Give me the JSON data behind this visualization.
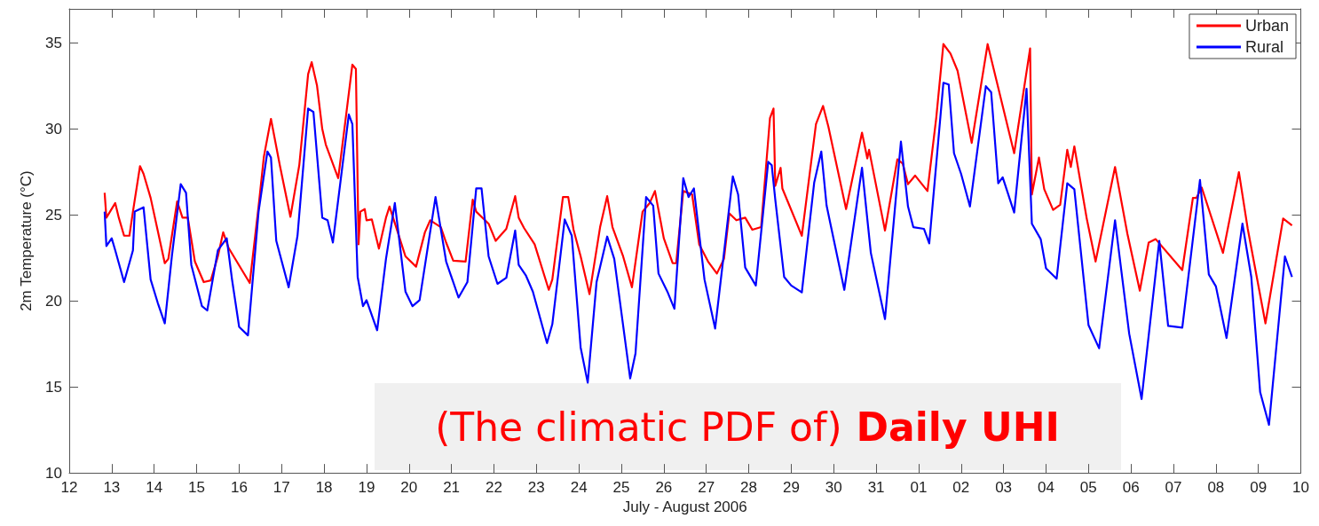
{
  "chart_data": {
    "type": "line",
    "xlabel": "July - August 2006",
    "ylabel": "2m Temperature (°C)",
    "xlim": [
      "2006-07-12",
      "2006-08-10"
    ],
    "ylim": [
      10,
      37
    ],
    "xticks": [
      {
        "value": "2006-07-12",
        "label": "12"
      },
      {
        "value": "2006-07-13",
        "label": "13"
      },
      {
        "value": "2006-07-14",
        "label": "14"
      },
      {
        "value": "2006-07-15",
        "label": "15"
      },
      {
        "value": "2006-07-16",
        "label": "16"
      },
      {
        "value": "2006-07-17",
        "label": "17"
      },
      {
        "value": "2006-07-18",
        "label": "18"
      },
      {
        "value": "2006-07-19",
        "label": "19"
      },
      {
        "value": "2006-07-20",
        "label": "20"
      },
      {
        "value": "2006-07-21",
        "label": "21"
      },
      {
        "value": "2006-07-22",
        "label": "22"
      },
      {
        "value": "2006-07-23",
        "label": "23"
      },
      {
        "value": "2006-07-24",
        "label": "24"
      },
      {
        "value": "2006-07-25",
        "label": "25"
      },
      {
        "value": "2006-07-26",
        "label": "26"
      },
      {
        "value": "2006-07-27",
        "label": "27"
      },
      {
        "value": "2006-07-28",
        "label": "28"
      },
      {
        "value": "2006-07-29",
        "label": "29"
      },
      {
        "value": "2006-07-30",
        "label": "30"
      },
      {
        "value": "2006-07-31",
        "label": "31"
      },
      {
        "value": "2006-08-01",
        "label": "01"
      },
      {
        "value": "2006-08-02",
        "label": "02"
      },
      {
        "value": "2006-08-03",
        "label": "03"
      },
      {
        "value": "2006-08-04",
        "label": "04"
      },
      {
        "value": "2006-08-05",
        "label": "05"
      },
      {
        "value": "2006-08-06",
        "label": "06"
      },
      {
        "value": "2006-08-07",
        "label": "07"
      },
      {
        "value": "2006-08-08",
        "label": "08"
      },
      {
        "value": "2006-08-09",
        "label": "09"
      },
      {
        "value": "2006-08-10",
        "label": "10"
      }
    ],
    "yticks": [
      10,
      15,
      20,
      25,
      30,
      35
    ],
    "grid": false,
    "legend": "top right",
    "line_style": "solid",
    "marker": "none",
    "annotations": [
      "(The climatic PDF of)",
      "Daily UHI"
    ],
    "series": [
      {
        "name": "Urban",
        "color": "#ff0000",
        "x": [
          "2006-07-12T20:00",
          "2006-07-12T21:00",
          "2006-07-13T02:00",
          "2006-07-13T04:00",
          "2006-07-13T07:00",
          "2006-07-13T10:00",
          "2006-07-13T12:00",
          "2006-07-13T16:00",
          "2006-07-13T18:00",
          "2006-07-13T22:00",
          "2006-07-14T06:00",
          "2006-07-14T08:00",
          "2006-07-14T13:00",
          "2006-07-14T16:00",
          "2006-07-14T19:00",
          "2006-07-14T23:00",
          "2006-07-15T04:00",
          "2006-07-15T08:00",
          "2006-07-15T12:00",
          "2006-07-15T15:00",
          "2006-07-15T18:00",
          "2006-07-16T01:00",
          "2006-07-16T06:00",
          "2006-07-16T11:00",
          "2006-07-16T14:00",
          "2006-07-16T18:00",
          "2006-07-16T23:00",
          "2006-07-17T05:00",
          "2006-07-17T10:00",
          "2006-07-17T15:00",
          "2006-07-17T17:00",
          "2006-07-17T20:00",
          "2006-07-17T23:00",
          "2006-07-18T01:00",
          "2006-07-18T08:00",
          "2006-07-18T11:00",
          "2006-07-18T16:00",
          "2006-07-18T18:00",
          "2006-07-18T19:30",
          "2006-07-18T20:30",
          "2006-07-18T23:00",
          "2006-07-19T00:00",
          "2006-07-19T03:00",
          "2006-07-19T07:00",
          "2006-07-19T11:00",
          "2006-07-19T13:00",
          "2006-07-19T22:00",
          "2006-07-20T04:00",
          "2006-07-20T09:00",
          "2006-07-20T12:00",
          "2006-07-20T18:00",
          "2006-07-20T21:00",
          "2006-07-21T01:00",
          "2006-07-21T08:00",
          "2006-07-21T12:00",
          "2006-07-21T14:00",
          "2006-07-21T21:00",
          "2006-07-22T01:00",
          "2006-07-22T07:00",
          "2006-07-22T12:00",
          "2006-07-22T14:00",
          "2006-07-22T17:00",
          "2006-07-22T23:00",
          "2006-07-23T07:00",
          "2006-07-23T09:00",
          "2006-07-23T15:00",
          "2006-07-23T18:00",
          "2006-07-23T21:00",
          "2006-07-24T01:00",
          "2006-07-24T06:00",
          "2006-07-24T12:00",
          "2006-07-24T16:00",
          "2006-07-24T19:00",
          "2006-07-25T01:00",
          "2006-07-25T06:00",
          "2006-07-25T12:00",
          "2006-07-25T16:00",
          "2006-07-25T19:00",
          "2006-07-26T00:00",
          "2006-07-26T05:00",
          "2006-07-26T07:00",
          "2006-07-26T11:00",
          "2006-07-26T16:00",
          "2006-07-26T20:00",
          "2006-07-27T01:00",
          "2006-07-27T06:00",
          "2006-07-27T10:00",
          "2006-07-27T13:00",
          "2006-07-27T17:00",
          "2006-07-27T22:00",
          "2006-07-28T02:00",
          "2006-07-28T07:00",
          "2006-07-28T12:00",
          "2006-07-28T14:00",
          "2006-07-28T15:00",
          "2006-07-28T18:00",
          "2006-07-28T19:00",
          "2006-07-29T06:00",
          "2006-07-29T14:00",
          "2006-07-29T18:00",
          "2006-07-29T21:00",
          "2006-07-30T07:00",
          "2006-07-30T16:00",
          "2006-07-30T19:00",
          "2006-07-30T20:00",
          "2006-07-31T05:00",
          "2006-07-31T12:00",
          "2006-07-31T15:00",
          "2006-07-31T18:00",
          "2006-07-31T22:00",
          "2006-08-01T05:00",
          "2006-08-01T10:00",
          "2006-08-01T14:00",
          "2006-08-01T18:00",
          "2006-08-01T22:00",
          "2006-08-02T06:00",
          "2006-08-02T15:00",
          "2006-08-03T06:00",
          "2006-08-03T15:00",
          "2006-08-03T16:00",
          "2006-08-03T20:00",
          "2006-08-03T23:00",
          "2006-08-04T04:00",
          "2006-08-04T08:00",
          "2006-08-04T12:00",
          "2006-08-04T14:00",
          "2006-08-04T16:00",
          "2006-08-04T23:00",
          "2006-08-05T04:00",
          "2006-08-05T15:00",
          "2006-08-05T22:00",
          "2006-08-06T05:00",
          "2006-08-06T10:00",
          "2006-08-06T14:00",
          "2006-08-07T05:00",
          "2006-08-07T11:00",
          "2006-08-07T13:00",
          "2006-08-07T16:00",
          "2006-08-08T04:00",
          "2006-08-08T13:00",
          "2006-08-08T18:00",
          "2006-08-09T04:00",
          "2006-08-09T14:00",
          "2006-08-09T19:00"
        ],
        "values": [
          26.3,
          24.85,
          25.7,
          24.85,
          23.8,
          23.8,
          25.2,
          27.85,
          27.4,
          26.0,
          22.2,
          22.45,
          25.8,
          24.85,
          24.85,
          22.3,
          21.1,
          21.2,
          22.6,
          24.0,
          23.1,
          21.9,
          21.05,
          25.5,
          28.4,
          30.6,
          27.9,
          24.9,
          27.9,
          33.2,
          33.9,
          32.55,
          30.0,
          29.1,
          27.15,
          29.6,
          33.75,
          33.5,
          23.3,
          25.2,
          25.35,
          24.7,
          24.75,
          23.05,
          24.85,
          25.5,
          22.6,
          22.0,
          24.0,
          24.7,
          24.3,
          23.4,
          22.35,
          22.3,
          25.9,
          25.2,
          24.5,
          23.5,
          24.2,
          26.1,
          24.85,
          24.25,
          23.3,
          20.65,
          21.25,
          26.05,
          26.05,
          24.15,
          22.6,
          20.4,
          24.3,
          26.1,
          24.3,
          22.6,
          20.8,
          25.2,
          25.7,
          26.4,
          23.65,
          22.2,
          22.2,
          26.4,
          26.2,
          23.3,
          22.3,
          21.6,
          22.45,
          25.1,
          24.7,
          24.85,
          24.15,
          24.3,
          30.65,
          31.2,
          26.7,
          27.75,
          26.55,
          23.8,
          30.3,
          31.35,
          30.15,
          25.35,
          29.8,
          28.3,
          28.8,
          24.1,
          28.25,
          28.0,
          26.8,
          27.3,
          26.4,
          30.7,
          34.95,
          34.4,
          33.4,
          29.2,
          34.95,
          28.6,
          34.7,
          26.2,
          28.35,
          26.5,
          25.3,
          25.6,
          28.8,
          27.8,
          29.0,
          24.8,
          22.3,
          27.8,
          23.9,
          20.6,
          23.4,
          23.6,
          21.8,
          26.0,
          26.0,
          26.6,
          22.8,
          27.5,
          24.2,
          18.7,
          24.8,
          24.4
        ]
      },
      {
        "name": "Rural",
        "color": "#0000ff",
        "x": [
          "2006-07-12T20:00",
          "2006-07-12T21:00",
          "2006-07-13T00:00",
          "2006-07-13T02:00",
          "2006-07-13T07:00",
          "2006-07-13T12:00",
          "2006-07-13T13:00",
          "2006-07-13T18:00",
          "2006-07-13T22:00",
          "2006-07-14T02:00",
          "2006-07-14T06:00",
          "2006-07-14T10:00",
          "2006-07-14T15:00",
          "2006-07-14T18:00",
          "2006-07-14T21:00",
          "2006-07-15T03:00",
          "2006-07-15T06:00",
          "2006-07-15T12:00",
          "2006-07-15T17:00",
          "2006-07-15T20:00",
          "2006-07-16T00:00",
          "2006-07-16T05:00",
          "2006-07-16T11:00",
          "2006-07-16T16:00",
          "2006-07-16T18:00",
          "2006-07-16T21:00",
          "2006-07-17T04:00",
          "2006-07-17T09:00",
          "2006-07-17T15:00",
          "2006-07-17T18:00",
          "2006-07-17T23:00",
          "2006-07-18T02:00",
          "2006-07-18T05:00",
          "2006-07-18T14:00",
          "2006-07-18T16:00",
          "2006-07-18T19:00",
          "2006-07-18T22:00",
          "2006-07-19T00:00",
          "2006-07-19T06:00",
          "2006-07-19T11:00",
          "2006-07-19T16:00",
          "2006-07-19T22:00",
          "2006-07-20T02:00",
          "2006-07-20T06:00",
          "2006-07-20T15:00",
          "2006-07-20T21:00",
          "2006-07-21T04:00",
          "2006-07-21T09:00",
          "2006-07-21T14:00",
          "2006-07-21T17:00",
          "2006-07-21T21:00",
          "2006-07-22T02:00",
          "2006-07-22T07:00",
          "2006-07-22T12:00",
          "2006-07-22T14:00",
          "2006-07-22T18:00",
          "2006-07-22T22:00",
          "2006-07-23T06:00",
          "2006-07-23T09:00",
          "2006-07-23T16:00",
          "2006-07-23T20:00",
          "2006-07-24T01:00",
          "2006-07-24T05:00",
          "2006-07-24T10:00",
          "2006-07-24T16:00",
          "2006-07-24T20:00",
          "2006-07-25T05:00",
          "2006-07-25T08:00",
          "2006-07-25T14:00",
          "2006-07-25T18:00",
          "2006-07-25T21:00",
          "2006-07-26T02:00",
          "2006-07-26T06:00",
          "2006-07-26T11:00",
          "2006-07-26T14:00",
          "2006-07-26T17:00",
          "2006-07-26T23:00",
          "2006-07-27T05:00",
          "2006-07-27T10:00",
          "2006-07-27T15:00",
          "2006-07-27T18:00",
          "2006-07-27T22:00",
          "2006-07-28T04:00",
          "2006-07-28T11:00",
          "2006-07-28T13:00",
          "2006-07-28T15:00",
          "2006-07-28T20:00",
          "2006-07-29T00:00",
          "2006-07-29T06:00",
          "2006-07-29T13:00",
          "2006-07-29T17:00",
          "2006-07-29T20:00",
          "2006-07-30T06:00",
          "2006-07-30T16:00",
          "2006-07-30T21:00",
          "2006-07-31T05:00",
          "2006-07-31T14:00",
          "2006-07-31T18:00",
          "2006-07-31T21:00",
          "2006-08-01T03:00",
          "2006-08-01T06:00",
          "2006-08-01T14:00",
          "2006-08-01T17:00",
          "2006-08-01T20:00",
          "2006-08-02T00:00",
          "2006-08-02T05:00",
          "2006-08-02T14:00",
          "2006-08-02T17:00",
          "2006-08-02T21:00",
          "2006-08-02T23:30",
          "2006-08-03T06:00",
          "2006-08-03T13:00",
          "2006-08-03T16:00",
          "2006-08-03T21:00",
          "2006-08-04T00:00",
          "2006-08-04T06:00",
          "2006-08-04T12:00",
          "2006-08-04T16:00",
          "2006-08-05T00:00",
          "2006-08-05T06:00",
          "2006-08-05T15:00",
          "2006-08-05T23:00",
          "2006-08-06T06:00",
          "2006-08-06T16:00",
          "2006-08-06T21:00",
          "2006-08-07T05:00",
          "2006-08-07T15:00",
          "2006-08-07T20:00",
          "2006-08-08T00:00",
          "2006-08-08T06:00",
          "2006-08-08T15:00",
          "2006-08-08T20:00",
          "2006-08-09T01:00",
          "2006-08-09T06:00",
          "2006-08-09T15:00",
          "2006-08-09T19:00"
        ],
        "values": [
          25.2,
          23.2,
          23.65,
          22.95,
          21.1,
          22.95,
          25.2,
          25.45,
          21.25,
          19.9,
          18.7,
          22.6,
          26.8,
          26.3,
          22.1,
          19.7,
          19.45,
          22.95,
          23.65,
          21.25,
          18.5,
          18.0,
          25.2,
          28.7,
          28.35,
          23.5,
          20.8,
          23.8,
          31.2,
          31.0,
          24.85,
          24.7,
          23.4,
          30.85,
          30.3,
          21.4,
          19.7,
          20.05,
          18.3,
          22.45,
          25.7,
          20.55,
          19.7,
          20.05,
          26.05,
          22.3,
          20.2,
          21.1,
          26.55,
          26.55,
          22.6,
          21.0,
          21.35,
          24.1,
          22.1,
          21.5,
          20.55,
          17.55,
          18.65,
          24.75,
          23.8,
          17.3,
          15.25,
          21.1,
          23.75,
          22.45,
          15.5,
          16.95,
          26.05,
          25.55,
          21.6,
          20.55,
          19.55,
          27.15,
          26.05,
          26.55,
          21.25,
          18.4,
          22.8,
          27.25,
          26.2,
          21.95,
          20.9,
          28.1,
          27.9,
          25.9,
          21.4,
          20.9,
          20.5,
          26.9,
          28.7,
          25.55,
          20.65,
          27.75,
          22.8,
          18.95,
          29.28,
          25.5,
          24.3,
          24.2,
          23.35,
          32.7,
          32.6,
          28.6,
          27.4,
          25.5,
          32.5,
          32.15,
          26.85,
          27.2,
          25.15,
          32.35,
          24.5,
          23.6,
          21.9,
          21.3,
          26.85,
          26.5,
          18.6,
          17.25,
          24.7,
          18.1,
          14.3,
          23.5,
          18.55,
          18.45,
          27.05,
          21.55,
          20.85,
          17.85,
          24.5,
          21.4,
          14.7,
          12.8,
          22.6,
          21.4
        ]
      }
    ]
  }
}
